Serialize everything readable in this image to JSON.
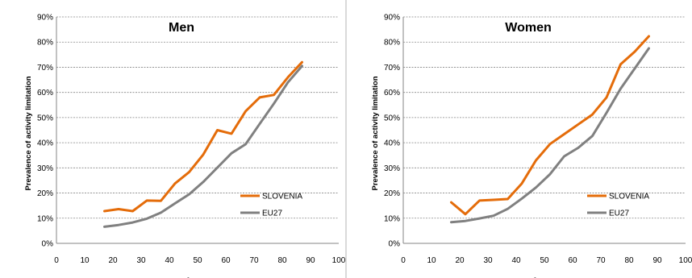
{
  "chart_data": [
    {
      "type": "line",
      "title": "Men",
      "xlabel": "Age",
      "ylabel": "Prevalence of activity limitation",
      "xlim": [
        0,
        100
      ],
      "ylim": [
        0,
        90
      ],
      "x_ticks": [
        "0",
        "10",
        "20",
        "30",
        "40",
        "50",
        "60",
        "70",
        "80",
        "90",
        "100"
      ],
      "y_ticks": [
        "0%",
        "10%",
        "20%",
        "30%",
        "40%",
        "50%",
        "60%",
        "70%",
        "80%",
        "90%"
      ],
      "grid": "horizontal",
      "legend_position": "right",
      "x": [
        17,
        22,
        27,
        32,
        37,
        42,
        47,
        52,
        57,
        62,
        67,
        72,
        77,
        82,
        87
      ],
      "series": [
        {
          "name": "SLOVENIA",
          "color": "#e46c0a",
          "values": [
            12.8,
            13.6,
            12.8,
            17.0,
            16.9,
            23.8,
            28.3,
            35.3,
            45.0,
            43.6,
            52.5,
            58.0,
            59.0,
            66.0,
            72.0
          ]
        },
        {
          "name": "EU27",
          "color": "#808080",
          "values": [
            6.6,
            7.3,
            8.3,
            9.8,
            12.2,
            15.9,
            19.5,
            24.4,
            30.1,
            35.8,
            39.4,
            47.5,
            55.5,
            64.0,
            70.5
          ]
        }
      ]
    },
    {
      "type": "line",
      "title": "Women",
      "xlabel": "Age",
      "ylabel": "Prevalence of activity limitation",
      "xlim": [
        0,
        100
      ],
      "ylim": [
        0,
        90
      ],
      "x_ticks": [
        "0",
        "10",
        "20",
        "30",
        "40",
        "50",
        "60",
        "70",
        "80",
        "90",
        "100"
      ],
      "y_ticks": [
        "0%",
        "10%",
        "20%",
        "30%",
        "40%",
        "50%",
        "60%",
        "70%",
        "80%",
        "90%"
      ],
      "grid": "horizontal",
      "legend_position": "right",
      "x": [
        17,
        22,
        27,
        32,
        37,
        42,
        47,
        52,
        57,
        62,
        67,
        72,
        77,
        82,
        87
      ],
      "series": [
        {
          "name": "SLOVENIA",
          "color": "#e46c0a",
          "values": [
            16.3,
            11.6,
            17.0,
            17.3,
            17.6,
            23.8,
            33.0,
            39.5,
            43.4,
            47.3,
            51.2,
            58.0,
            71.2,
            76.2,
            82.3
          ]
        },
        {
          "name": "EU27",
          "color": "#808080",
          "values": [
            8.4,
            8.9,
            9.9,
            11.0,
            13.7,
            17.8,
            22.2,
            27.5,
            34.6,
            38.0,
            42.7,
            51.9,
            61.5,
            69.5,
            77.5
          ]
        }
      ]
    }
  ]
}
